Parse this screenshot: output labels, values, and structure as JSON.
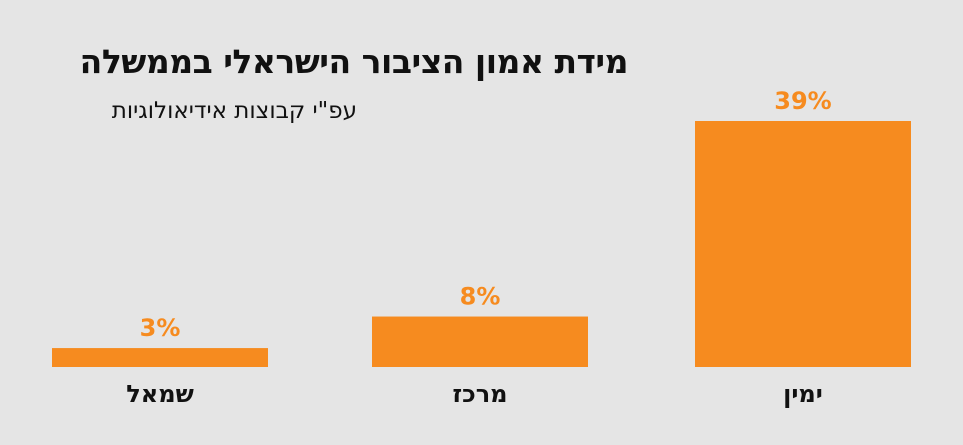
{
  "title": "מידת אמון הציבור הישראלי בממשלה",
  "subtitle": "עפ\"י קבוצות אידיאולוגיות",
  "colors": {
    "background": "#e5e5e5",
    "bar": "#f68b1f",
    "value_label": "#f68b1f",
    "text": "#111111"
  },
  "chart_data": {
    "type": "bar",
    "title": "מידת אמון הציבור הישראלי בממשלה",
    "subtitle": "עפ\"י קבוצות אידיאולוגיות",
    "categories": [
      "ימין",
      "מרכז",
      "שמאל"
    ],
    "values": [
      39,
      8,
      3
    ],
    "value_labels": [
      "39%",
      "8%",
      "3%"
    ],
    "category_order": "right-to-left",
    "ylim": [
      0,
      39
    ],
    "grid": false,
    "legend": "none"
  }
}
